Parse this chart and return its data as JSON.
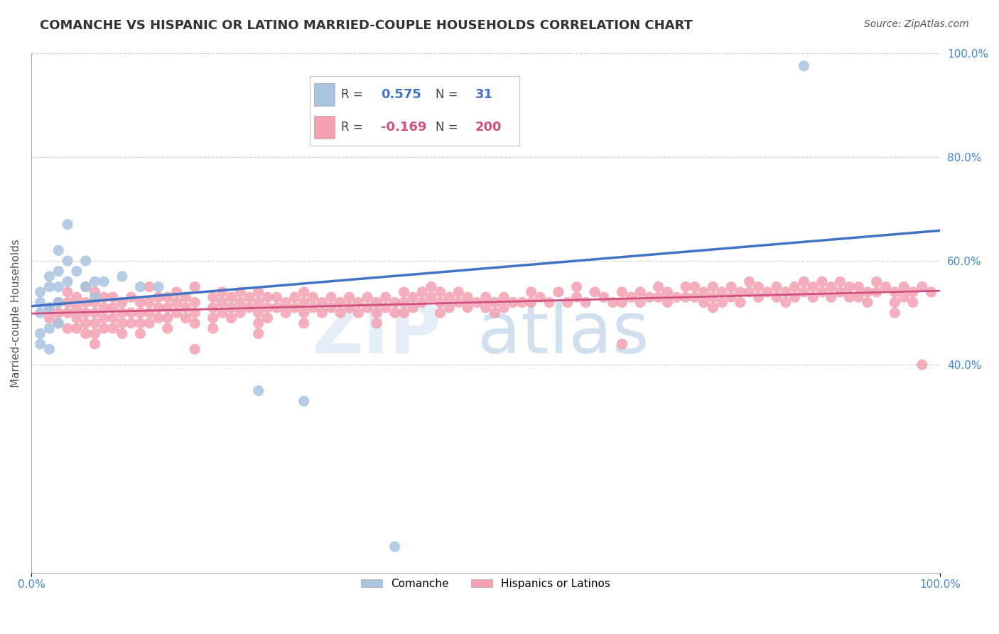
{
  "title": "COMANCHE VS HISPANIC OR LATINO MARRIED-COUPLE HOUSEHOLDS CORRELATION CHART",
  "source": "Source: ZipAtlas.com",
  "ylabel": "Married-couple Households",
  "xlim": [
    0.0,
    1.0
  ],
  "ylim": [
    0.0,
    1.0
  ],
  "ytick_labels_right": [
    "100.0%",
    "80.0%",
    "60.0%",
    "40.0%"
  ],
  "ytick_positions_right": [
    1.0,
    0.8,
    0.6,
    0.4
  ],
  "r_comanche": 0.575,
  "n_comanche": 31,
  "r_hispanic": -0.169,
  "n_hispanic": 200,
  "comanche_color": "#a8c4e0",
  "hispanic_color": "#f4a0b0",
  "comanche_line_color": "#4472c4",
  "hispanic_line_color": "#d05080",
  "title_color": "#333333",
  "source_color": "#555555",
  "axis_label_color": "#555555",
  "right_tick_color": "#4488cc",
  "grid_color": "#cccccc",
  "comanche_points": [
    [
      0.01,
      0.52
    ],
    [
      0.01,
      0.5
    ],
    [
      0.01,
      0.54
    ],
    [
      0.01,
      0.46
    ],
    [
      0.01,
      0.44
    ],
    [
      0.02,
      0.57
    ],
    [
      0.02,
      0.55
    ],
    [
      0.02,
      0.51
    ],
    [
      0.02,
      0.47
    ],
    [
      0.02,
      0.43
    ],
    [
      0.03,
      0.62
    ],
    [
      0.03,
      0.58
    ],
    [
      0.03,
      0.55
    ],
    [
      0.03,
      0.52
    ],
    [
      0.03,
      0.48
    ],
    [
      0.04,
      0.67
    ],
    [
      0.04,
      0.6
    ],
    [
      0.04,
      0.56
    ],
    [
      0.05,
      0.58
    ],
    [
      0.06,
      0.6
    ],
    [
      0.06,
      0.55
    ],
    [
      0.07,
      0.56
    ],
    [
      0.07,
      0.53
    ],
    [
      0.08,
      0.56
    ],
    [
      0.1,
      0.57
    ],
    [
      0.12,
      0.55
    ],
    [
      0.14,
      0.55
    ],
    [
      0.25,
      0.35
    ],
    [
      0.3,
      0.33
    ],
    [
      0.4,
      0.05
    ],
    [
      0.85,
      0.975
    ]
  ],
  "hispanic_points": [
    [
      0.02,
      0.51
    ],
    [
      0.02,
      0.49
    ],
    [
      0.03,
      0.52
    ],
    [
      0.03,
      0.5
    ],
    [
      0.03,
      0.48
    ],
    [
      0.04,
      0.54
    ],
    [
      0.04,
      0.52
    ],
    [
      0.04,
      0.5
    ],
    [
      0.04,
      0.47
    ],
    [
      0.05,
      0.53
    ],
    [
      0.05,
      0.51
    ],
    [
      0.05,
      0.49
    ],
    [
      0.05,
      0.47
    ],
    [
      0.06,
      0.55
    ],
    [
      0.06,
      0.52
    ],
    [
      0.06,
      0.5
    ],
    [
      0.06,
      0.48
    ],
    [
      0.06,
      0.46
    ],
    [
      0.07,
      0.54
    ],
    [
      0.07,
      0.52
    ],
    [
      0.07,
      0.5
    ],
    [
      0.07,
      0.48
    ],
    [
      0.07,
      0.46
    ],
    [
      0.07,
      0.44
    ],
    [
      0.08,
      0.53
    ],
    [
      0.08,
      0.51
    ],
    [
      0.08,
      0.49
    ],
    [
      0.08,
      0.47
    ],
    [
      0.09,
      0.53
    ],
    [
      0.09,
      0.51
    ],
    [
      0.09,
      0.49
    ],
    [
      0.09,
      0.47
    ],
    [
      0.1,
      0.52
    ],
    [
      0.1,
      0.5
    ],
    [
      0.1,
      0.48
    ],
    [
      0.1,
      0.46
    ],
    [
      0.11,
      0.53
    ],
    [
      0.11,
      0.5
    ],
    [
      0.11,
      0.48
    ],
    [
      0.12,
      0.52
    ],
    [
      0.12,
      0.5
    ],
    [
      0.12,
      0.48
    ],
    [
      0.12,
      0.46
    ],
    [
      0.13,
      0.55
    ],
    [
      0.13,
      0.52
    ],
    [
      0.13,
      0.5
    ],
    [
      0.13,
      0.48
    ],
    [
      0.14,
      0.53
    ],
    [
      0.14,
      0.51
    ],
    [
      0.14,
      0.49
    ],
    [
      0.15,
      0.53
    ],
    [
      0.15,
      0.51
    ],
    [
      0.15,
      0.49
    ],
    [
      0.15,
      0.47
    ],
    [
      0.16,
      0.54
    ],
    [
      0.16,
      0.52
    ],
    [
      0.16,
      0.5
    ],
    [
      0.17,
      0.53
    ],
    [
      0.17,
      0.51
    ],
    [
      0.17,
      0.49
    ],
    [
      0.18,
      0.55
    ],
    [
      0.18,
      0.52
    ],
    [
      0.18,
      0.5
    ],
    [
      0.18,
      0.48
    ],
    [
      0.18,
      0.43
    ],
    [
      0.2,
      0.53
    ],
    [
      0.2,
      0.51
    ],
    [
      0.2,
      0.49
    ],
    [
      0.2,
      0.47
    ],
    [
      0.21,
      0.54
    ],
    [
      0.21,
      0.52
    ],
    [
      0.21,
      0.5
    ],
    [
      0.22,
      0.53
    ],
    [
      0.22,
      0.51
    ],
    [
      0.22,
      0.49
    ],
    [
      0.23,
      0.54
    ],
    [
      0.23,
      0.52
    ],
    [
      0.23,
      0.5
    ],
    [
      0.24,
      0.53
    ],
    [
      0.24,
      0.51
    ],
    [
      0.25,
      0.54
    ],
    [
      0.25,
      0.52
    ],
    [
      0.25,
      0.5
    ],
    [
      0.25,
      0.48
    ],
    [
      0.25,
      0.46
    ],
    [
      0.26,
      0.53
    ],
    [
      0.26,
      0.51
    ],
    [
      0.26,
      0.49
    ],
    [
      0.27,
      0.53
    ],
    [
      0.27,
      0.51
    ],
    [
      0.28,
      0.52
    ],
    [
      0.28,
      0.5
    ],
    [
      0.29,
      0.53
    ],
    [
      0.29,
      0.51
    ],
    [
      0.3,
      0.54
    ],
    [
      0.3,
      0.52
    ],
    [
      0.3,
      0.5
    ],
    [
      0.3,
      0.48
    ],
    [
      0.31,
      0.53
    ],
    [
      0.31,
      0.51
    ],
    [
      0.32,
      0.52
    ],
    [
      0.32,
      0.5
    ],
    [
      0.33,
      0.53
    ],
    [
      0.33,
      0.51
    ],
    [
      0.34,
      0.52
    ],
    [
      0.34,
      0.5
    ],
    [
      0.35,
      0.53
    ],
    [
      0.35,
      0.51
    ],
    [
      0.36,
      0.52
    ],
    [
      0.36,
      0.5
    ],
    [
      0.37,
      0.53
    ],
    [
      0.37,
      0.51
    ],
    [
      0.38,
      0.52
    ],
    [
      0.38,
      0.5
    ],
    [
      0.38,
      0.48
    ],
    [
      0.39,
      0.53
    ],
    [
      0.39,
      0.51
    ],
    [
      0.4,
      0.52
    ],
    [
      0.4,
      0.5
    ],
    [
      0.41,
      0.54
    ],
    [
      0.41,
      0.52
    ],
    [
      0.41,
      0.5
    ],
    [
      0.42,
      0.53
    ],
    [
      0.42,
      0.51
    ],
    [
      0.43,
      0.54
    ],
    [
      0.43,
      0.52
    ],
    [
      0.44,
      0.55
    ],
    [
      0.44,
      0.53
    ],
    [
      0.45,
      0.54
    ],
    [
      0.45,
      0.52
    ],
    [
      0.45,
      0.5
    ],
    [
      0.46,
      0.53
    ],
    [
      0.46,
      0.51
    ],
    [
      0.47,
      0.54
    ],
    [
      0.47,
      0.52
    ],
    [
      0.48,
      0.53
    ],
    [
      0.48,
      0.51
    ],
    [
      0.49,
      0.52
    ],
    [
      0.5,
      0.53
    ],
    [
      0.5,
      0.51
    ],
    [
      0.51,
      0.52
    ],
    [
      0.51,
      0.5
    ],
    [
      0.52,
      0.53
    ],
    [
      0.52,
      0.51
    ],
    [
      0.53,
      0.52
    ],
    [
      0.54,
      0.52
    ],
    [
      0.55,
      0.54
    ],
    [
      0.55,
      0.52
    ],
    [
      0.56,
      0.53
    ],
    [
      0.57,
      0.52
    ],
    [
      0.58,
      0.54
    ],
    [
      0.59,
      0.52
    ],
    [
      0.6,
      0.55
    ],
    [
      0.6,
      0.53
    ],
    [
      0.61,
      0.52
    ],
    [
      0.62,
      0.54
    ],
    [
      0.63,
      0.53
    ],
    [
      0.64,
      0.52
    ],
    [
      0.65,
      0.54
    ],
    [
      0.65,
      0.52
    ],
    [
      0.65,
      0.44
    ],
    [
      0.66,
      0.53
    ],
    [
      0.67,
      0.54
    ],
    [
      0.67,
      0.52
    ],
    [
      0.68,
      0.53
    ],
    [
      0.69,
      0.55
    ],
    [
      0.69,
      0.53
    ],
    [
      0.7,
      0.54
    ],
    [
      0.7,
      0.52
    ],
    [
      0.71,
      0.53
    ],
    [
      0.72,
      0.55
    ],
    [
      0.72,
      0.53
    ],
    [
      0.73,
      0.55
    ],
    [
      0.73,
      0.53
    ],
    [
      0.74,
      0.54
    ],
    [
      0.74,
      0.52
    ],
    [
      0.75,
      0.55
    ],
    [
      0.75,
      0.53
    ],
    [
      0.75,
      0.51
    ],
    [
      0.76,
      0.54
    ],
    [
      0.76,
      0.52
    ],
    [
      0.77,
      0.55
    ],
    [
      0.77,
      0.53
    ],
    [
      0.78,
      0.54
    ],
    [
      0.78,
      0.52
    ],
    [
      0.79,
      0.56
    ],
    [
      0.79,
      0.54
    ],
    [
      0.8,
      0.55
    ],
    [
      0.8,
      0.53
    ],
    [
      0.81,
      0.54
    ],
    [
      0.82,
      0.55
    ],
    [
      0.82,
      0.53
    ],
    [
      0.83,
      0.54
    ],
    [
      0.83,
      0.52
    ],
    [
      0.84,
      0.55
    ],
    [
      0.84,
      0.53
    ],
    [
      0.85,
      0.56
    ],
    [
      0.85,
      0.54
    ],
    [
      0.86,
      0.55
    ],
    [
      0.86,
      0.53
    ],
    [
      0.87,
      0.56
    ],
    [
      0.87,
      0.54
    ],
    [
      0.88,
      0.55
    ],
    [
      0.88,
      0.53
    ],
    [
      0.89,
      0.56
    ],
    [
      0.89,
      0.54
    ],
    [
      0.9,
      0.55
    ],
    [
      0.9,
      0.53
    ],
    [
      0.91,
      0.55
    ],
    [
      0.91,
      0.53
    ],
    [
      0.92,
      0.54
    ],
    [
      0.92,
      0.52
    ],
    [
      0.93,
      0.56
    ],
    [
      0.93,
      0.54
    ],
    [
      0.94,
      0.55
    ],
    [
      0.95,
      0.54
    ],
    [
      0.95,
      0.52
    ],
    [
      0.95,
      0.5
    ],
    [
      0.96,
      0.55
    ],
    [
      0.96,
      0.53
    ],
    [
      0.97,
      0.54
    ],
    [
      0.97,
      0.52
    ],
    [
      0.98,
      0.55
    ],
    [
      0.98,
      0.4
    ],
    [
      0.99,
      0.54
    ]
  ]
}
